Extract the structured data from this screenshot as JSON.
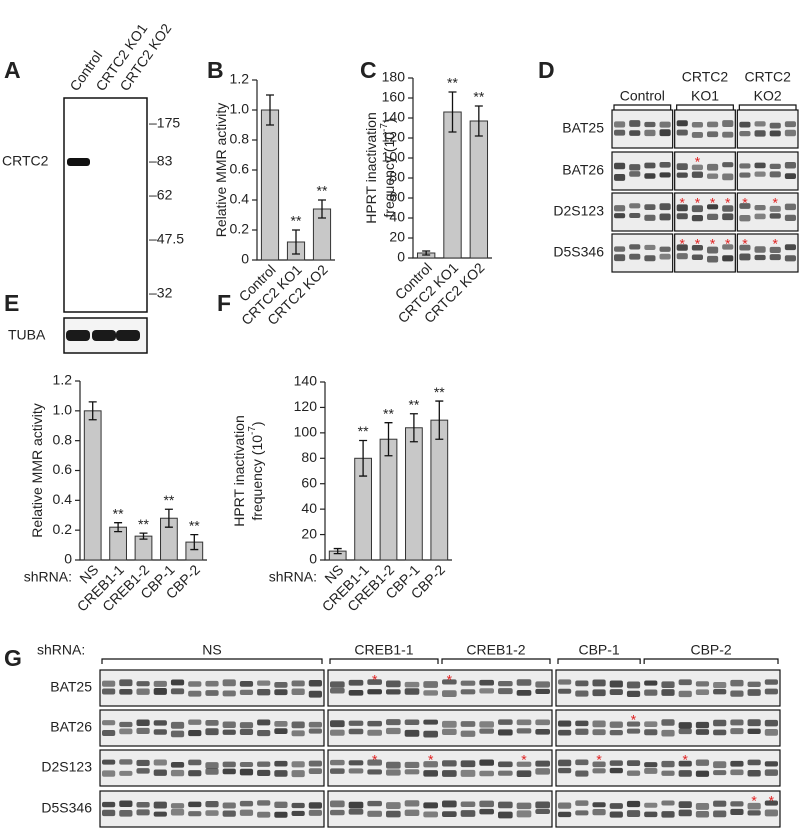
{
  "panels": [
    "A",
    "B",
    "C",
    "D",
    "E",
    "F",
    "G"
  ],
  "blot": {
    "lanes": [
      "Control",
      "CRTC2 KO1",
      "CRTC2 KO2"
    ],
    "rows": [
      "CRTC2",
      "TUBA"
    ],
    "markers": [
      "–175",
      "–83",
      "–62",
      "–47.5",
      "–32"
    ]
  },
  "chart_data": [
    {
      "type": "bar",
      "ylabel": [
        "Relative MMR activity"
      ],
      "categories": [
        "Control",
        "CRTC2 KO1",
        "CRTC2 KO2"
      ],
      "values": [
        1.0,
        0.12,
        0.34
      ],
      "errors": [
        0.1,
        0.08,
        0.06
      ],
      "annotations": [
        null,
        "**",
        "**"
      ],
      "color": "#c8c8c8",
      "ylim": [
        0,
        1.2
      ],
      "yticks": [
        0,
        0.2,
        0.4,
        0.6,
        0.8,
        {
          "value": 1,
          "label": "1.0"
        },
        1.2
      ]
    },
    {
      "type": "bar",
      "ylabel": [
        "HPRT inactivation",
        "frequency (10"
      ],
      "ylabel_sup": "-7",
      "ylabel_end": ")",
      "categories": [
        "Control",
        "CRTC2 KO1",
        "CRTC2 KO2"
      ],
      "values": [
        5,
        146,
        137
      ],
      "errors": [
        2,
        20,
        15
      ],
      "annotations": [
        null,
        "**",
        "**"
      ],
      "color": "#c8c8c8",
      "ylim": [
        0,
        180
      ],
      "yticks": [
        0,
        20,
        40,
        60,
        80,
        100,
        120,
        140,
        160,
        180
      ]
    },
    {
      "type": "bar",
      "ylabel": [
        "Relative MMR activity"
      ],
      "xprefix": "shRNA:",
      "categories": [
        "NS",
        "CREB1-1",
        "CREB1-2",
        "CBP-1",
        "CBP-2"
      ],
      "values": [
        1.0,
        0.22,
        0.16,
        0.28,
        0.12
      ],
      "errors": [
        0.06,
        0.03,
        0.02,
        0.06,
        0.05
      ],
      "annotations": [
        null,
        "**",
        "**",
        "**",
        "**"
      ],
      "color": "#c8c8c8",
      "ylim": [
        0,
        1.2
      ],
      "yticks": [
        0,
        0.2,
        0.4,
        0.6,
        0.8,
        {
          "value": 1,
          "label": "1.0"
        },
        1.2
      ]
    },
    {
      "type": "bar",
      "ylabel": [
        "HPRT inactivation",
        "frequency (10"
      ],
      "ylabel_sup": "-7",
      "ylabel_end": ")",
      "xprefix": "shRNA:",
      "categories": [
        "NS",
        "CREB1-1",
        "CREB1-2",
        "CBP-1",
        "CBP-2"
      ],
      "values": [
        7,
        80,
        95,
        104,
        110
      ],
      "errors": [
        2,
        14,
        13,
        11,
        15
      ],
      "annotations": [
        null,
        "**",
        "**",
        "**",
        "**"
      ],
      "color": "#c8c8c8",
      "ylim": [
        0,
        140
      ],
      "yticks": [
        0,
        20,
        40,
        60,
        80,
        100,
        120,
        140
      ]
    }
  ],
  "gel_d": {
    "groups": [
      {
        "lines": [
          "Control"
        ]
      },
      {
        "lines": [
          "CRTC2",
          "KO1"
        ]
      },
      {
        "lines": [
          "CRTC2",
          "KO2"
        ]
      }
    ],
    "rows": [
      {
        "label": "BAT25",
        "lanes": [
          [
            null,
            null,
            null,
            null
          ],
          [
            null,
            null,
            null,
            null
          ],
          [
            null,
            null,
            null,
            null
          ]
        ]
      },
      {
        "label": "BAT26",
        "lanes": [
          [
            null,
            null,
            null,
            null
          ],
          [
            null,
            "*",
            null,
            null
          ],
          [
            null,
            null,
            null,
            null
          ]
        ]
      },
      {
        "label": "D2S123",
        "lanes": [
          [
            null,
            null,
            null,
            null
          ],
          [
            "*",
            "*",
            "*",
            "*"
          ],
          [
            "*",
            null,
            "*",
            null
          ]
        ]
      },
      {
        "label": "D5S346",
        "lanes": [
          [
            null,
            null,
            null,
            null
          ],
          [
            "*",
            "*",
            "*",
            "*"
          ],
          [
            "*",
            null,
            "*",
            null
          ]
        ]
      }
    ]
  },
  "gel_g": {
    "prefix": "shRNA:",
    "groups": [
      {
        "lines": [
          "NS"
        ]
      },
      {
        "lines": [
          "CREB1-1"
        ]
      },
      {
        "lines": [
          "CREB1-2"
        ]
      },
      {
        "lines": [
          "CBP-1"
        ]
      },
      {
        "lines": [
          "CBP-2"
        ]
      }
    ],
    "rows": [
      {
        "label": "BAT25",
        "lanes": [
          [
            null,
            null,
            null,
            null,
            null,
            null,
            null,
            null,
            null,
            null,
            null,
            null,
            null
          ],
          [
            null,
            null,
            "*",
            null,
            null,
            null
          ],
          [
            "*",
            null,
            null,
            null,
            null,
            null
          ],
          [
            null,
            null,
            null,
            null,
            null
          ],
          [
            null,
            null,
            null,
            null,
            null,
            null,
            null,
            null
          ]
        ]
      },
      {
        "label": "BAT26",
        "lanes": [
          [
            null,
            null,
            null,
            null,
            null,
            null,
            null,
            null,
            null,
            null,
            null,
            null,
            null
          ],
          [
            null,
            null,
            null,
            null,
            null,
            null
          ],
          [
            null,
            null,
            null,
            null,
            null,
            null
          ],
          [
            null,
            null,
            null,
            null,
            "*"
          ],
          [
            null,
            null,
            null,
            null,
            null,
            null,
            null,
            null
          ]
        ]
      },
      {
        "label": "D2S123",
        "lanes": [
          [
            null,
            null,
            null,
            null,
            null,
            null,
            null,
            null,
            null,
            null,
            null,
            null,
            null
          ],
          [
            null,
            null,
            "*",
            null,
            null,
            "*"
          ],
          [
            null,
            null,
            null,
            null,
            "*",
            null
          ],
          [
            null,
            null,
            "*",
            null,
            null
          ],
          [
            null,
            null,
            "*",
            null,
            null,
            null,
            null,
            null
          ]
        ]
      },
      {
        "label": "D5S346",
        "lanes": [
          [
            null,
            null,
            null,
            null,
            null,
            null,
            null,
            null,
            null,
            null,
            null,
            null,
            null
          ],
          [
            null,
            null,
            null,
            null,
            null,
            null
          ],
          [
            null,
            null,
            null,
            null,
            null,
            null
          ],
          [
            null,
            null,
            null,
            null,
            null
          ],
          [
            null,
            null,
            null,
            null,
            null,
            null,
            "*",
            "*"
          ]
        ]
      }
    ]
  }
}
